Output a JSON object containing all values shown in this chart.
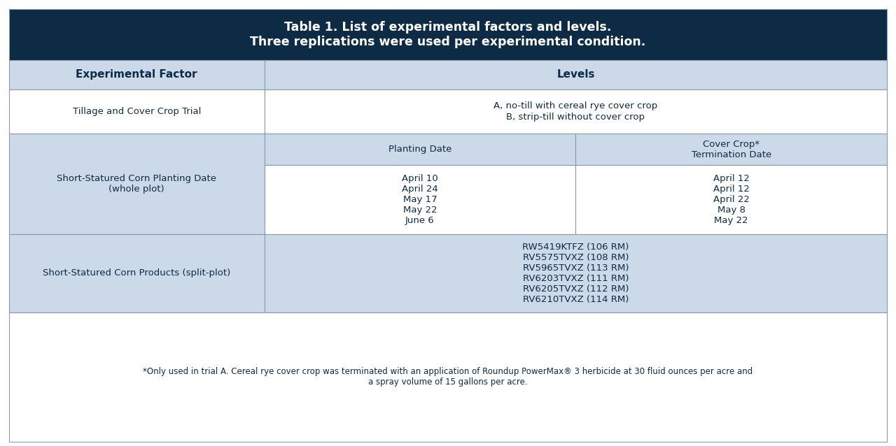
{
  "title_line1": "Table 1. List of experimental factors and levels.",
  "title_line2": "Three replications were used per experimental condition.",
  "header_bg": "#0d2b45",
  "header_text_color": "#ffffff",
  "col_header_bg": "#ccd9e8",
  "col_header_text_color": "#0d2b45",
  "row_bg_odd": "#e8eef4",
  "row_bg_even": "#dde6f0",
  "cell_bg_light": "#edf2f7",
  "border_color": "#aabbcc",
  "text_color": "#0d2b45",
  "footer_text": "*Only used in trial A. Cereal rye cover crop was terminated with an application of Roundup PowerMax® 3 herbicide at 30 fluid ounces per acre and\na spray volume of 15 gallons per acre.",
  "col1_header": "Experimental Factor",
  "col2_header": "Levels",
  "row1_factor": "Tillage and Cover Crop Trial",
  "row1_levels": "A, no-till with cereal rye cover crop\nB, strip-till without cover crop",
  "row2_factor": "Short-Statured Corn Planting Date\n(whole plot)",
  "row2_sub_col1_header": "Planting Date",
  "row2_sub_col2_header": "Cover Crop*\nTermination Date",
  "planting_dates": [
    "April 10",
    "April 24",
    "May 17",
    "May 22",
    "June 6"
  ],
  "termination_dates": [
    "April 12",
    "April 12",
    "April 22",
    "May 8",
    "May 22"
  ],
  "row3_factor": "Short-Statured Corn Products (split-plot)",
  "row3_levels": [
    "RW5419KTFZ (106 RM)",
    "RV5575TVXZ (108 RM)",
    "RV5965TVXZ (113 RM)",
    "RV6203TVXZ (111 RM)",
    "RV6205TVXZ (112 RM)",
    "RV6210TVXZ (114 RM)"
  ]
}
